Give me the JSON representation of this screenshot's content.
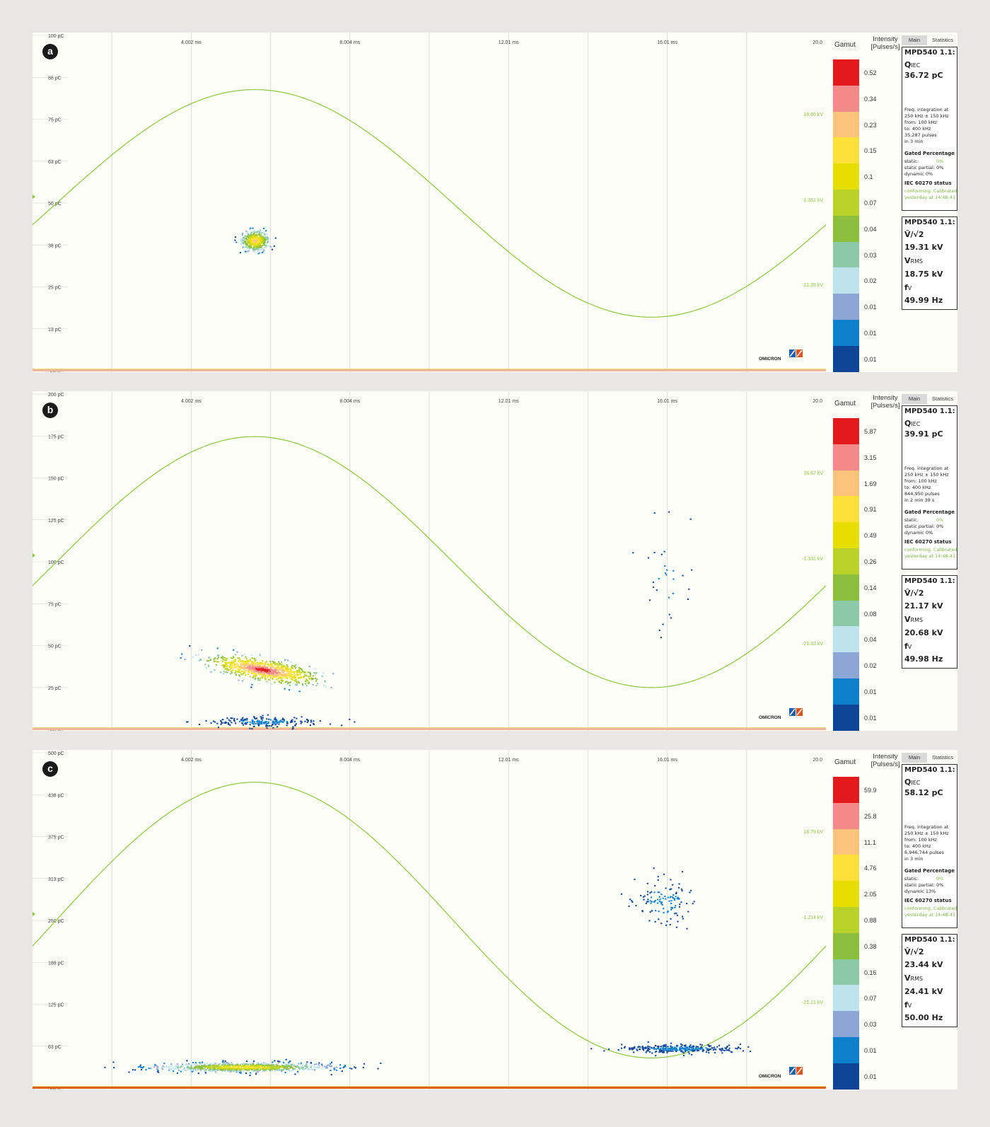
{
  "chart_data": [
    {
      "type": "heatmap",
      "panel_label": "a",
      "x_ticks": [
        "4.002 ms",
        "8.004 ms",
        "12.01 ms",
        "16.01 ms",
        "20.0"
      ],
      "y_ticks": [
        "100 pC",
        "88 pC",
        "75 pC",
        "63 pC",
        "50 pC",
        "38 pC",
        "25 pC",
        "13 pC",
        "500 fC"
      ],
      "ylim_pC": [
        0.5,
        100
      ],
      "xlim_ms": [
        0,
        20
      ],
      "voltage_labels": [
        "18.65 kV",
        "-1.351 kV",
        "-21.35 kV"
      ],
      "sine_peak_pC": 84,
      "sine_trough_pC": 16,
      "clusters": [
        {
          "x_ms": 5.6,
          "y_pC": 39,
          "x_spread": 0.35,
          "y_spread": 3,
          "intensity": "orange-yellow",
          "points": 420
        }
      ],
      "gamut_title": "Gamut",
      "intensity_title": "Intensity [Pulses/s]",
      "legend_values": [
        "0.52",
        "0.34",
        "0.23",
        "0.15",
        "0.1",
        "0.07",
        "0.04",
        "0.03",
        "0.02",
        "0.01",
        "0.01",
        "0.01"
      ],
      "stats": {
        "header": "MPD540 1.1:",
        "q_label": "Q",
        "q_sub": "IEC",
        "q_value": "36.72 pC",
        "freq_lines": [
          "Freq. integration at",
          "250 kHz ± 150 kHz",
          "from:  100 kHz",
          "to:     400 kHz",
          "35,287 pulses",
          "in  3 min"
        ],
        "gated_title": "Gated Percentage",
        "gated_lines": [
          "static:",
          "static partial: 0%",
          "dynamic      0%"
        ],
        "gated_static_val": "0%",
        "iec_title": "IEC 60270 status",
        "iec_lines": [
          "conforming. Calibrated",
          "yesterday at 14:48:41"
        ]
      },
      "volts": {
        "header": "MPD540 1.1:",
        "v_label": "V̂/√2",
        "v_value": "19.31 kV",
        "rms_label": "V",
        "rms_sub": "RMS",
        "rms_value": "18.75 kV",
        "f_label": "f",
        "f_sub": "V",
        "f_value": "49.99 Hz"
      }
    },
    {
      "type": "heatmap",
      "panel_label": "b",
      "x_ticks": [
        "4.002 ms",
        "8.004 ms",
        "12.01 ms",
        "16.01 ms",
        "20.0"
      ],
      "y_ticks": [
        "200 pC",
        "175 pC",
        "150 pC",
        "125 pC",
        "100 pC",
        "75 pC",
        "50 pC",
        "25 pC",
        "500 fC"
      ],
      "ylim_pC": [
        0.5,
        200
      ],
      "xlim_ms": [
        0,
        20
      ],
      "voltage_labels": [
        "18.67 kV",
        "-1.331 kV",
        "-21.33 kV"
      ],
      "sine_peak_pC": 175,
      "sine_trough_pC": 25,
      "clusters": [
        {
          "x_ms": 5.8,
          "y_pC": 36,
          "x_spread": 1.3,
          "y_spread": 6,
          "intensity": "red",
          "points": 900
        },
        {
          "x_ms": 5.8,
          "y_pC": 5,
          "x_spread": 1.3,
          "y_spread": 3,
          "intensity": "blue",
          "points": 200
        },
        {
          "x_ms": 16.0,
          "y_pC": 90,
          "x_spread": 0.6,
          "y_spread": 35,
          "intensity": "blue",
          "points": 30
        }
      ],
      "gamut_title": "Gamut",
      "intensity_title": "Intensity [Pulses/s]",
      "legend_values": [
        "5.87",
        "3.15",
        "1.69",
        "0.91",
        "0.49",
        "0.26",
        "0.14",
        "0.08",
        "0.04",
        "0.02",
        "0.01",
        "0.01"
      ],
      "stats": {
        "header": "MPD540 1.1:",
        "q_label": "Q",
        "q_sub": "IEC",
        "q_value": "39.91 pC",
        "freq_lines": [
          "Freq. integration at",
          "250 kHz ± 150 kHz",
          "from:  100 kHz",
          "to:     400 kHz",
          "844,950 pulses",
          "in  2 min 39 s"
        ],
        "gated_title": "Gated Percentage",
        "gated_lines": [
          "static:",
          "static partial: 0%",
          "dynamic      0%"
        ],
        "gated_static_val": "0%",
        "iec_title": "IEC 60270 status",
        "iec_lines": [
          "conforming. Calibrated",
          "yesterday at 14:48:41"
        ]
      },
      "volts": {
        "header": "MPD540 1.1:",
        "v_label": "V̂/√2",
        "v_value": "21.17 kV",
        "rms_label": "V",
        "rms_sub": "RMS",
        "rms_value": "20.68 kV",
        "f_label": "f",
        "f_sub": "V",
        "f_value": "49.98 Hz"
      }
    },
    {
      "type": "heatmap",
      "panel_label": "c",
      "x_ticks": [
        "4.002 ms",
        "8.004 ms",
        "12.01 ms",
        "16.01 ms",
        "20.0"
      ],
      "y_ticks": [
        "500 pC",
        "438 pC",
        "375 pC",
        "313 pC",
        "250 pC",
        "188 pC",
        "125 pC",
        "63 pC",
        "500 fC"
      ],
      "ylim_pC": [
        0.5,
        500
      ],
      "xlim_ms": [
        0,
        20
      ],
      "voltage_labels": [
        "18.79 kV",
        "-1.214 kV",
        "-21.21 kV"
      ],
      "sine_peak_pC": 457,
      "sine_trough_pC": 45,
      "clusters": [
        {
          "x_ms": 5.3,
          "y_pC": 32,
          "x_spread": 2.2,
          "y_spread": 7,
          "intensity": "yellow",
          "points": 900
        },
        {
          "x_ms": 16.3,
          "y_pC": 60,
          "x_spread": 1.5,
          "y_spread": 6,
          "intensity": "blue",
          "points": 300
        },
        {
          "x_ms": 15.9,
          "y_pC": 280,
          "x_spread": 0.8,
          "y_spread": 35,
          "intensity": "blue",
          "points": 120
        }
      ],
      "gamut_title": "Gamut",
      "intensity_title": "Intensity [Pulses/s]",
      "legend_values": [
        "59.9",
        "25.8",
        "11.1",
        "4.76",
        "2.05",
        "0.88",
        "0.38",
        "0.16",
        "0.07",
        "0.03",
        "0.01",
        "0.01"
      ],
      "stats": {
        "header": "MPD540 1.1:",
        "q_label": "Q",
        "q_sub": "IEC",
        "q_value": "58.12 pC",
        "freq_lines": [
          "Freq. integration at",
          "250 kHz ± 150 kHz",
          "from:  100 kHz",
          "to:     400 kHz",
          "6,946,744 pulses",
          "in  3 min"
        ],
        "gated_title": "Gated Percentage",
        "gated_lines": [
          "static:",
          "static partial: 0%",
          "dynamic      13%"
        ],
        "gated_static_val": "0%",
        "iec_title": "IEC 60270 status",
        "iec_lines": [
          "conforming. Calibrated",
          "yesterday at 14:48:41"
        ]
      },
      "volts": {
        "header": "MPD540 1.1:",
        "v_label": "V̂/√2",
        "v_value": "23.44 kV",
        "rms_label": "V",
        "rms_sub": "RMS",
        "rms_value": "24.41 kV",
        "f_label": "f",
        "f_sub": "V",
        "f_value": "50.00 Hz"
      }
    }
  ],
  "ui": {
    "tab_main": "Main",
    "tab_statistics": "Statistics",
    "logo_text": "OMICRON"
  },
  "colors": {
    "sine": "#8cc63f",
    "gamut": [
      "#e31a1c",
      "#f4898a",
      "#fbc47a",
      "#fde03a",
      "#e5de00",
      "#b9d22a",
      "#8dbf3e",
      "#8cc9a6",
      "#bfe3ec",
      "#8ca6d6",
      "#0d80cc",
      "#0e4596"
    ]
  }
}
